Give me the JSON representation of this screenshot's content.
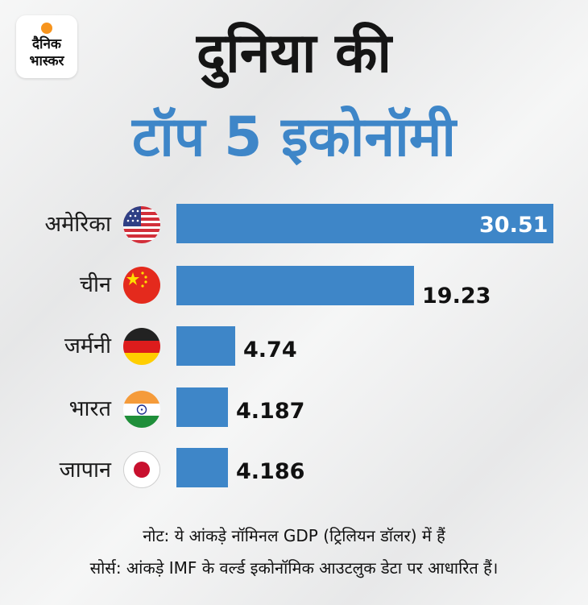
{
  "logo": {
    "line1": "दैनिक",
    "line2": "भास्कर"
  },
  "title": {
    "line1": "दुनिया की",
    "line2": "टॉप 5 इकोनॉमी"
  },
  "colors": {
    "bar": "#3e86c8",
    "title_accent": "#3e86c8",
    "logo_sun": "#f7941d"
  },
  "chart_data": {
    "type": "bar",
    "orientation": "horizontal",
    "categories": [
      "अमेरिका",
      "चीन",
      "जर्मनी",
      "भारत",
      "जापान"
    ],
    "values": [
      30.51,
      19.23,
      4.74,
      4.187,
      4.186
    ],
    "value_labels": [
      "30.51",
      "19.23",
      "4.74",
      "4.187",
      "4.186"
    ],
    "flags": [
      "usa-flag-icon",
      "china-flag-icon",
      "germany-flag-icon",
      "india-flag-icon",
      "japan-flag-icon"
    ],
    "title": "दुनिया की टॉप 5 इकोनॉमी",
    "grid": false
  },
  "notes": {
    "note": "नोट: ये आंकड़े नॉमिनल GDP (ट्रिलियन डॉलर) में हैं",
    "source": "सोर्स: आंकड़े IMF के वर्ल्ड इकोनॉमिक आउटलुक डेटा पर आधारित हैं।"
  }
}
